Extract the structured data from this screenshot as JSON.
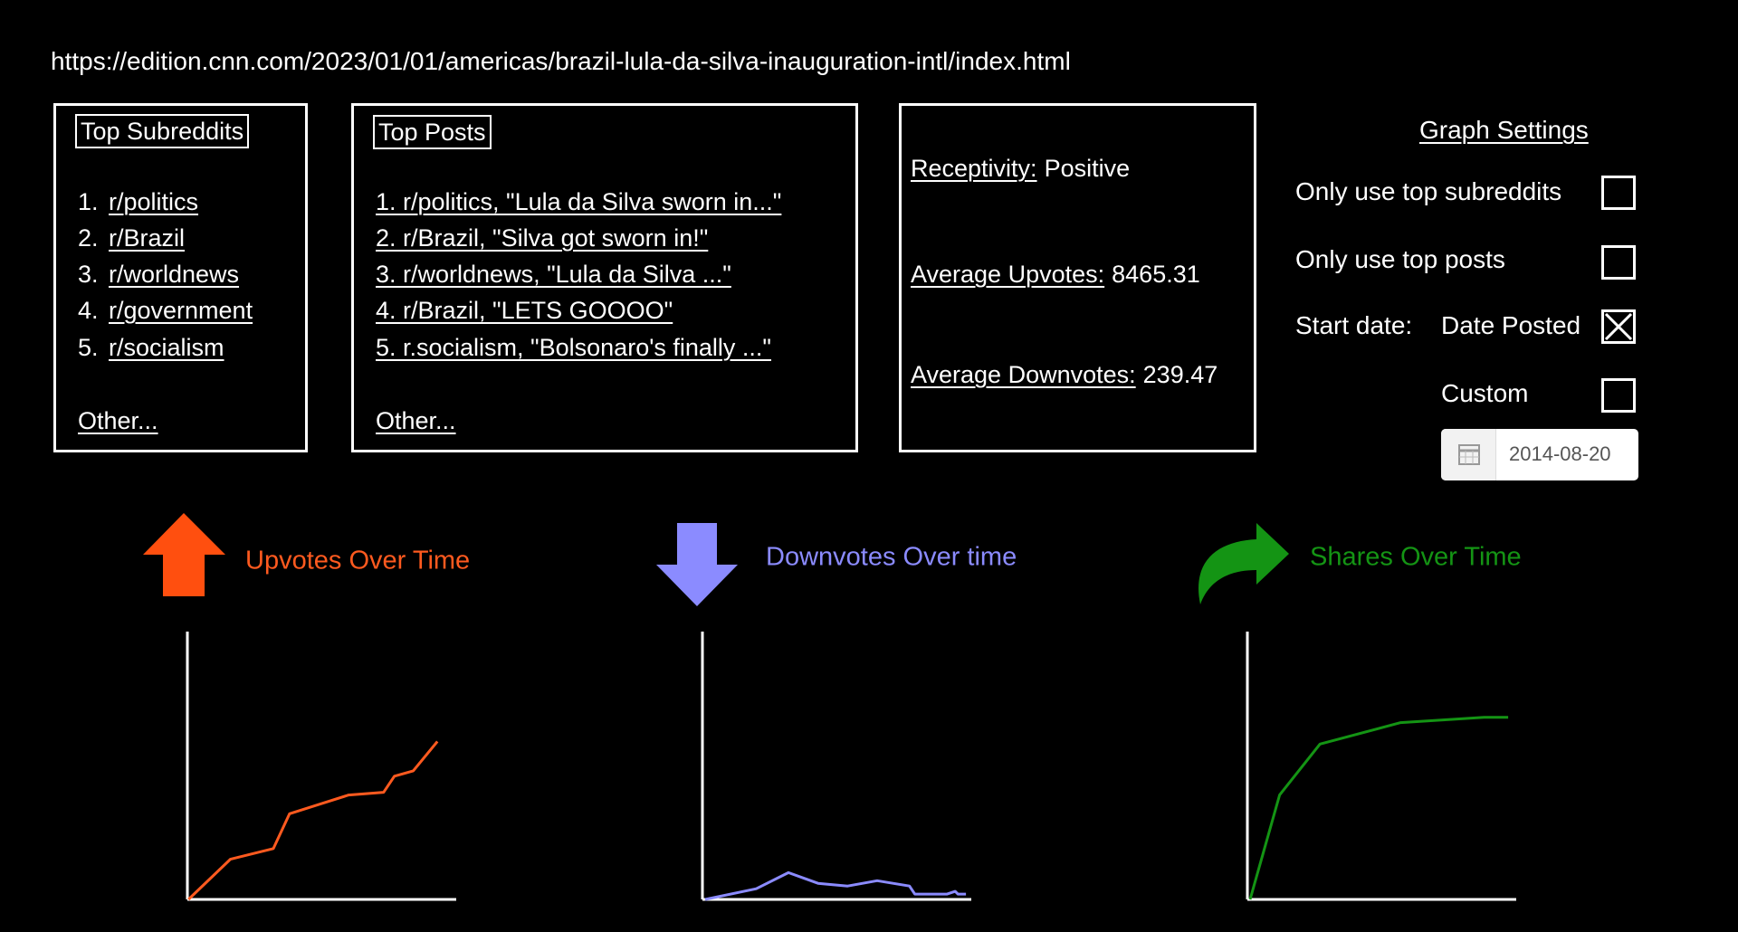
{
  "url": "https://edition.cnn.com/2023/01/01/americas/brazil-lula-da-silva-inauguration-intl/index.html",
  "top_subreddits": {
    "title": "Top Subreddits",
    "items": [
      {
        "number": "1.",
        "name": "r/politics"
      },
      {
        "number": "2.",
        "name": "r/Brazil"
      },
      {
        "number": "3.",
        "name": "r/worldnews"
      },
      {
        "number": "4.",
        "name": "r/government"
      },
      {
        "number": "5.",
        "name": "r/socialism"
      }
    ],
    "other": "Other..."
  },
  "top_posts": {
    "title": "Top Posts",
    "items": [
      "1. r/politics, \"Lula da Silva sworn in...\"",
      "2. r/Brazil, \"Silva got sworn in!\"",
      "3. r/worldnews, \"Lula da Silva ...\"",
      "4. r/Brazil, \"LETS GOOOO\"",
      "5. r.socialism, \"Bolsonaro's finally ...\""
    ],
    "other": "Other..."
  },
  "stats": [
    {
      "label": "Receptivity:",
      "value": "Positive"
    },
    {
      "label": "Average Upvotes:",
      "value": 8465.31
    },
    {
      "label": "Average Downvotes:",
      "value": 239.47
    }
  ],
  "graph_settings": {
    "title": "Graph Settings",
    "options": [
      {
        "label": "Only use top subreddits",
        "checked": false
      },
      {
        "label": "Only use top posts",
        "checked": false
      }
    ],
    "start_date": {
      "label": "Start date:",
      "options": [
        {
          "label": "Date Posted",
          "checked": true
        },
        {
          "label": "Custom",
          "checked": false
        }
      ],
      "date": "2014-08-20"
    }
  },
  "charts": [
    {
      "type": "line",
      "title": "Upvotes Over Time",
      "color": "#ff5a1f",
      "x": [
        0.4,
        16,
        32,
        38,
        60,
        73,
        77,
        84,
        93
      ],
      "values": [
        0,
        15,
        19,
        32,
        39,
        40,
        46,
        48,
        59
      ],
      "xlim": [
        0,
        100
      ],
      "ylim": [
        0,
        100
      ]
    },
    {
      "type": "line",
      "title": "Downvotes Over time",
      "color": "#8b8bff",
      "x": [
        1,
        20,
        32,
        43,
        54,
        65,
        77,
        79,
        91,
        94,
        95,
        98
      ],
      "values": [
        0,
        4,
        10,
        6,
        5,
        7,
        5,
        2,
        2,
        3,
        2,
        2
      ],
      "xlim": [
        0,
        100
      ],
      "ylim": [
        0,
        100
      ]
    },
    {
      "type": "line",
      "title": "Shares Over Time",
      "color": "#149414",
      "x": [
        1,
        12,
        27,
        57,
        88,
        97
      ],
      "values": [
        0,
        39,
        58,
        66,
        68,
        68
      ],
      "xlim": [
        0,
        100
      ],
      "ylim": [
        0,
        100
      ]
    }
  ]
}
